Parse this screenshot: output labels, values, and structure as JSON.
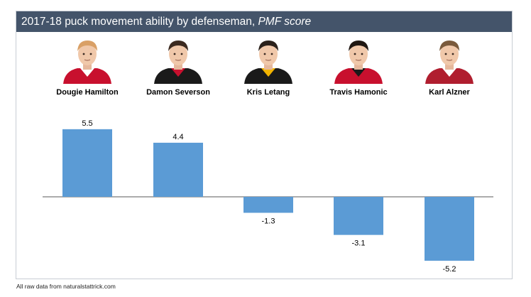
{
  "title": {
    "main": "2017-18 puck movement ability by defenseman, ",
    "metric": "PMF score"
  },
  "colors": {
    "title_bg": "#44546a",
    "bar": "#5b9bd5",
    "axis": "#595959",
    "jersey_red": "#c8102e",
    "jersey_black": "#1a1a1a"
  },
  "players": [
    {
      "name": "Dougie Hamilton",
      "hair": "#d9a066",
      "jersey": "#c8102e",
      "trim": "#ffffff"
    },
    {
      "name": "Damon Severson",
      "hair": "#3b2a20",
      "jersey": "#1a1a1a",
      "trim": "#c8102e"
    },
    {
      "name": "Kris Letang",
      "hair": "#2a211b",
      "jersey": "#1a1a1a",
      "trim": "#f2b400"
    },
    {
      "name": "Travis Hamonic",
      "hair": "#1f1712",
      "jersey": "#c8102e",
      "trim": "#1a1a1a"
    },
    {
      "name": "Karl Alzner",
      "hair": "#7a5a3c",
      "jersey": "#b01e2f",
      "trim": "#ffffff"
    }
  ],
  "chart_data": {
    "type": "bar",
    "title": "2017-18 puck movement ability by defenseman, PMF score",
    "categories": [
      "Dougie Hamilton",
      "Damon Severson",
      "Kris Letang",
      "Travis Hamonic",
      "Karl Alzner"
    ],
    "values": [
      5.5,
      4.4,
      -1.3,
      -3.1,
      -5.2
    ],
    "labels": [
      "5.5",
      "4.4",
      "-1.3",
      "-3.1",
      "-5.2"
    ],
    "xlabel": "",
    "ylabel": "",
    "ylim": [
      -5.2,
      5.5
    ],
    "grid": false,
    "legend": "none"
  },
  "footnote": "All raw data from naturalstattrick.com"
}
